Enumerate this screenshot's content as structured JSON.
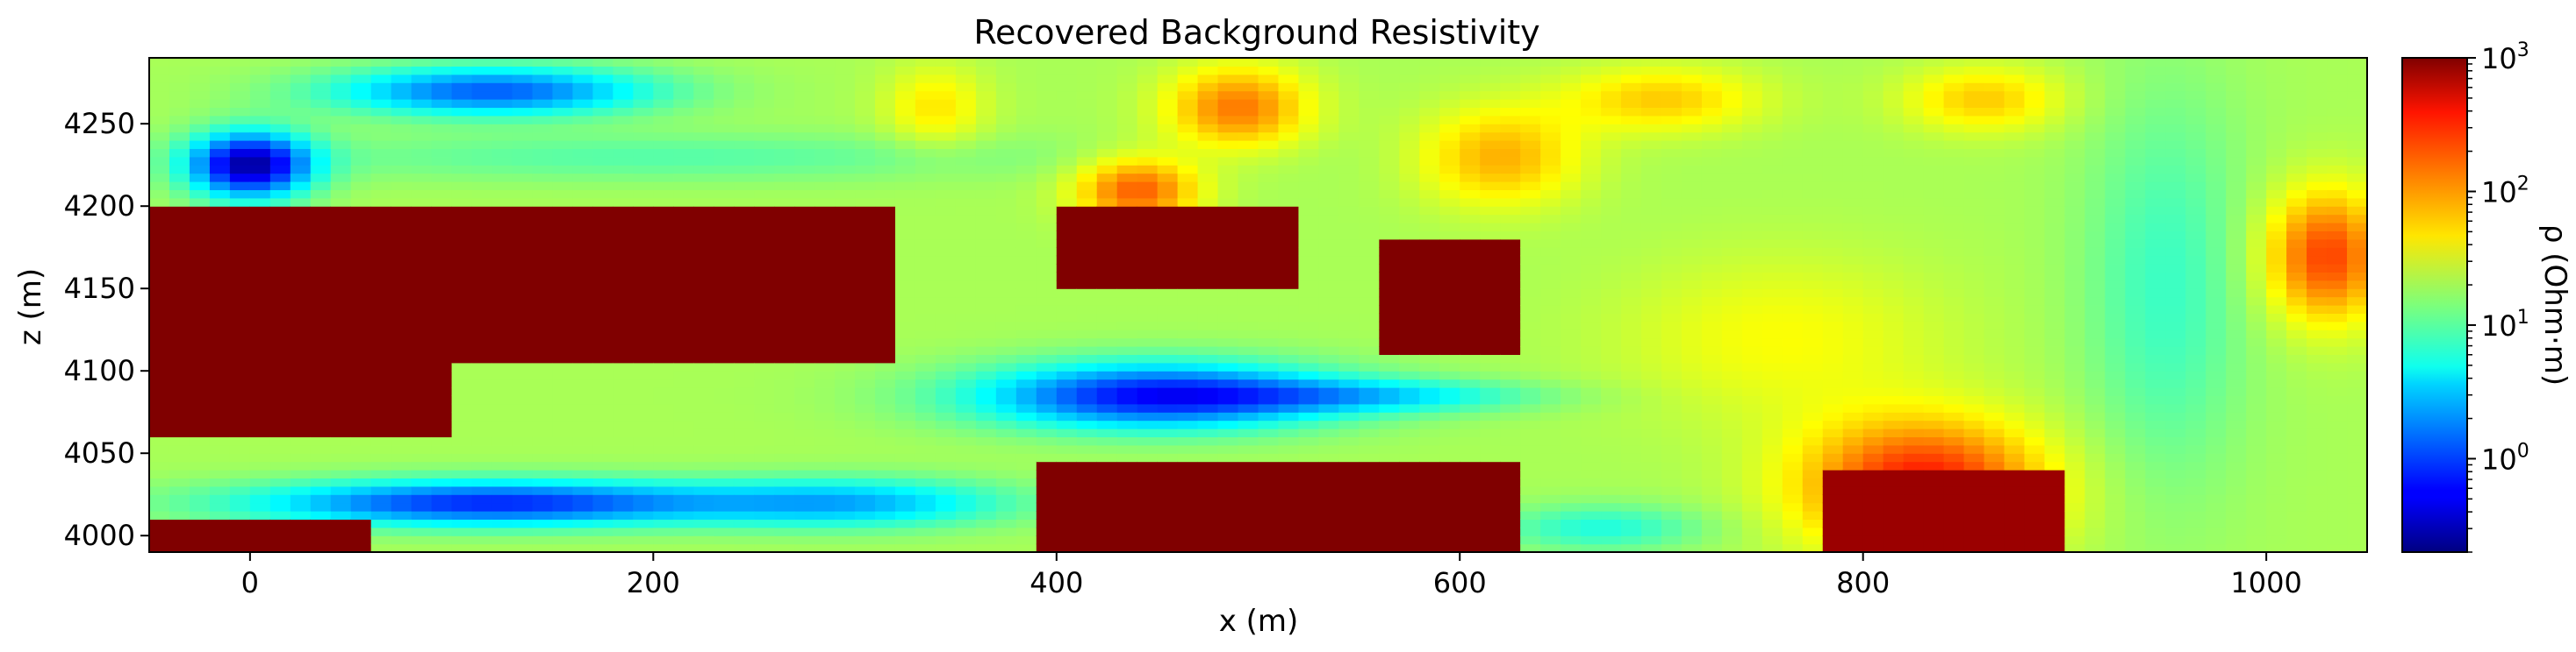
{
  "chart_data": {
    "type": "heatmap",
    "title": "Recovered Background Resistivity",
    "xlabel": "x (m)",
    "ylabel": "z (m)",
    "colorbar_label": "ρ (Ohm·m)",
    "colormap": "jet",
    "color_scale": "log",
    "xlim": [
      -50,
      1050
    ],
    "ylim": [
      3990,
      4290
    ],
    "x_ticks": [
      0,
      200,
      400,
      600,
      800,
      1000
    ],
    "x_tick_labels": [
      "0",
      "200",
      "400",
      "600",
      "800",
      "1000"
    ],
    "y_ticks": [
      4000,
      4050,
      4100,
      4150,
      4200,
      4250
    ],
    "y_tick_labels": [
      "4000",
      "4050",
      "4100",
      "4150",
      "4200",
      "4250"
    ],
    "colorbar_range": [
      0.2,
      1000
    ],
    "colorbar_ticks": [
      1,
      10,
      100,
      1000
    ],
    "colorbar_tick_base": "10",
    "colorbar_tick_exponents": [
      "0",
      "1",
      "2",
      "3"
    ],
    "grid": false,
    "regions": [
      {
        "shape": "rect",
        "x": [
          -50,
          320
        ],
        "y": [
          4105,
          4200
        ],
        "log_rho": 3
      },
      {
        "shape": "rect",
        "x": [
          -50,
          100
        ],
        "y": [
          4060,
          4105
        ],
        "log_rho": 3
      },
      {
        "shape": "rect",
        "x": [
          400,
          520
        ],
        "y": [
          4150,
          4200
        ],
        "log_rho": 3
      },
      {
        "shape": "rect",
        "x": [
          560,
          630
        ],
        "y": [
          4110,
          4180
        ],
        "log_rho": 3
      },
      {
        "shape": "rect",
        "x": [
          390,
          630
        ],
        "y": [
          3990,
          4045
        ],
        "log_rho": 3
      },
      {
        "shape": "rect",
        "x": [
          780,
          900
        ],
        "y": [
          3990,
          4040
        ],
        "log_rho": 2.9
      },
      {
        "shape": "rect",
        "x": [
          -50,
          60
        ],
        "y": [
          3990,
          4010
        ],
        "log_rho": 3
      }
    ],
    "field_components": {
      "background": 1.3,
      "bumps": [
        {
          "x": 0,
          "y": 4225,
          "sx": 30,
          "sy": 20,
          "amp": -1.8
        },
        {
          "x": 120,
          "y": 4270,
          "sx": 80,
          "sy": 15,
          "amp": -1.2
        },
        {
          "x": 200,
          "y": 4230,
          "sx": 200,
          "sy": 15,
          "amp": -0.3
        },
        {
          "x": 120,
          "y": 4020,
          "sx": 120,
          "sy": 14,
          "amp": -1.4
        },
        {
          "x": 300,
          "y": 4020,
          "sx": 80,
          "sy": 15,
          "amp": -0.8
        },
        {
          "x": 450,
          "y": 4085,
          "sx": 90,
          "sy": 20,
          "amp": -1.5
        },
        {
          "x": 560,
          "y": 4085,
          "sx": 80,
          "sy": 10,
          "amp": -0.6
        },
        {
          "x": 440,
          "y": 4210,
          "sx": 30,
          "sy": 20,
          "amp": 0.9
        },
        {
          "x": 490,
          "y": 4260,
          "sx": 35,
          "sy": 25,
          "amp": 0.8
        },
        {
          "x": 620,
          "y": 4230,
          "sx": 40,
          "sy": 30,
          "amp": 0.6
        },
        {
          "x": 700,
          "y": 4265,
          "sx": 50,
          "sy": 20,
          "amp": 0.5
        },
        {
          "x": 830,
          "y": 4030,
          "sx": 60,
          "sy": 40,
          "amp": 1.2
        },
        {
          "x": 760,
          "y": 4120,
          "sx": 80,
          "sy": 50,
          "amp": 0.3
        },
        {
          "x": 1030,
          "y": 4170,
          "sx": 30,
          "sy": 40,
          "amp": 1.0
        },
        {
          "x": 950,
          "y": 4150,
          "sx": 40,
          "sy": 120,
          "amp": -0.4
        },
        {
          "x": 860,
          "y": 4265,
          "sx": 40,
          "sy": 20,
          "amp": 0.5
        },
        {
          "x": 670,
          "y": 4005,
          "sx": 50,
          "sy": 14,
          "amp": -0.5
        },
        {
          "x": 340,
          "y": 4260,
          "sx": 25,
          "sy": 25,
          "amp": 0.4
        }
      ]
    }
  }
}
